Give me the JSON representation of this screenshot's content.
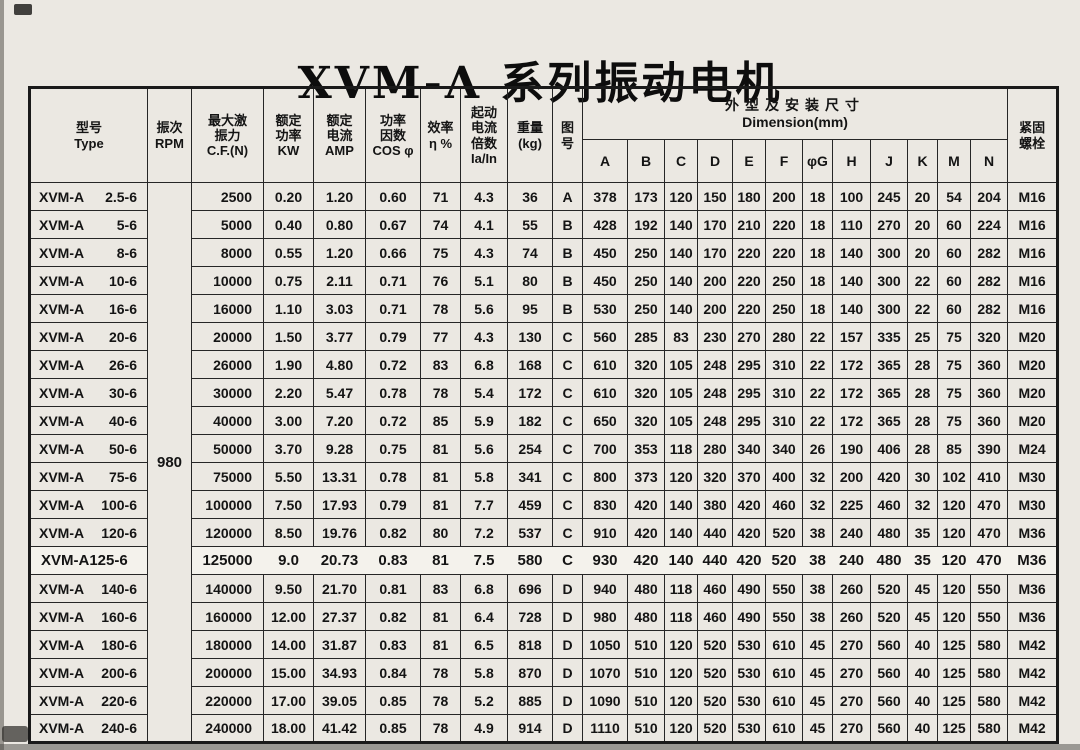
{
  "title": "XVM-A 系列振动电机",
  "colors": {
    "paper": "#ebe8e2",
    "ink": "#1a1a1a"
  },
  "table": {
    "left_headers": [
      "型号\nType",
      "振次\nRPM",
      "最大激\n振力\nC.F.(N)",
      "额定\n功率\nKW",
      "额定\n电流\nAMP",
      "功率\n因数\nCOS φ",
      "效率\nη %",
      "起动\n电流\n倍数\nIa/In",
      "重量\n(kg)",
      "图\n号"
    ],
    "dim_group": "外型及安装尺寸\nDimension(mm)",
    "dim_cols": [
      "A",
      "B",
      "C",
      "D",
      "E",
      "F",
      "φG",
      "H",
      "J",
      "K",
      "M",
      "N"
    ],
    "bolt_header": "紧固\n螺栓",
    "rpm_value": "980",
    "rows": [
      {
        "model": "XVM-A",
        "size": "2.5-6",
        "cf": "2500",
        "kw": "0.20",
        "amp": "1.20",
        "cos": "0.60",
        "eff": "71",
        "ia_in": "4.3",
        "weight": "36",
        "fig": "A",
        "dims": [
          "378",
          "173",
          "120",
          "150",
          "180",
          "200",
          "18",
          "100",
          "245",
          "20",
          "54",
          "204"
        ],
        "bolt": "M16"
      },
      {
        "model": "XVM-A",
        "size": "5-6",
        "cf": "5000",
        "kw": "0.40",
        "amp": "0.80",
        "cos": "0.67",
        "eff": "74",
        "ia_in": "4.1",
        "weight": "55",
        "fig": "B",
        "dims": [
          "428",
          "192",
          "140",
          "170",
          "210",
          "220",
          "18",
          "110",
          "270",
          "20",
          "60",
          "224"
        ],
        "bolt": "M16"
      },
      {
        "model": "XVM-A",
        "size": "8-6",
        "cf": "8000",
        "kw": "0.55",
        "amp": "1.20",
        "cos": "0.66",
        "eff": "75",
        "ia_in": "4.3",
        "weight": "74",
        "fig": "B",
        "dims": [
          "450",
          "250",
          "140",
          "170",
          "220",
          "220",
          "18",
          "140",
          "300",
          "20",
          "60",
          "282"
        ],
        "bolt": "M16"
      },
      {
        "model": "XVM-A",
        "size": "10-6",
        "cf": "10000",
        "kw": "0.75",
        "amp": "2.11",
        "cos": "0.71",
        "eff": "76",
        "ia_in": "5.1",
        "weight": "80",
        "fig": "B",
        "dims": [
          "450",
          "250",
          "140",
          "200",
          "220",
          "250",
          "18",
          "140",
          "300",
          "22",
          "60",
          "282"
        ],
        "bolt": "M16"
      },
      {
        "model": "XVM-A",
        "size": "16-6",
        "cf": "16000",
        "kw": "1.10",
        "amp": "3.03",
        "cos": "0.71",
        "eff": "78",
        "ia_in": "5.6",
        "weight": "95",
        "fig": "B",
        "dims": [
          "530",
          "250",
          "140",
          "200",
          "220",
          "250",
          "18",
          "140",
          "300",
          "22",
          "60",
          "282"
        ],
        "bolt": "M16"
      },
      {
        "model": "XVM-A",
        "size": "20-6",
        "cf": "20000",
        "kw": "1.50",
        "amp": "3.77",
        "cos": "0.79",
        "eff": "77",
        "ia_in": "4.3",
        "weight": "130",
        "fig": "C",
        "dims": [
          "560",
          "285",
          "83",
          "230",
          "270",
          "280",
          "22",
          "157",
          "335",
          "25",
          "75",
          "320"
        ],
        "bolt": "M20"
      },
      {
        "model": "XVM-A",
        "size": "26-6",
        "cf": "26000",
        "kw": "1.90",
        "amp": "4.80",
        "cos": "0.72",
        "eff": "83",
        "ia_in": "6.8",
        "weight": "168",
        "fig": "C",
        "dims": [
          "610",
          "320",
          "105",
          "248",
          "295",
          "310",
          "22",
          "172",
          "365",
          "28",
          "75",
          "360"
        ],
        "bolt": "M20"
      },
      {
        "model": "XVM-A",
        "size": "30-6",
        "cf": "30000",
        "kw": "2.20",
        "amp": "5.47",
        "cos": "0.78",
        "eff": "78",
        "ia_in": "5.4",
        "weight": "172",
        "fig": "C",
        "dims": [
          "610",
          "320",
          "105",
          "248",
          "295",
          "310",
          "22",
          "172",
          "365",
          "28",
          "75",
          "360"
        ],
        "bolt": "M20"
      },
      {
        "model": "XVM-A",
        "size": "40-6",
        "cf": "40000",
        "kw": "3.00",
        "amp": "7.20",
        "cos": "0.72",
        "eff": "85",
        "ia_in": "5.9",
        "weight": "182",
        "fig": "C",
        "dims": [
          "650",
          "320",
          "105",
          "248",
          "295",
          "310",
          "22",
          "172",
          "365",
          "28",
          "75",
          "360"
        ],
        "bolt": "M20"
      },
      {
        "model": "XVM-A",
        "size": "50-6",
        "cf": "50000",
        "kw": "3.70",
        "amp": "9.28",
        "cos": "0.75",
        "eff": "81",
        "ia_in": "5.6",
        "weight": "254",
        "fig": "C",
        "dims": [
          "700",
          "353",
          "118",
          "280",
          "340",
          "340",
          "26",
          "190",
          "406",
          "28",
          "85",
          "390"
        ],
        "bolt": "M24"
      },
      {
        "model": "XVM-A",
        "size": "75-6",
        "cf": "75000",
        "kw": "5.50",
        "amp": "13.31",
        "cos": "0.78",
        "eff": "81",
        "ia_in": "5.8",
        "weight": "341",
        "fig": "C",
        "dims": [
          "800",
          "373",
          "120",
          "320",
          "370",
          "400",
          "32",
          "200",
          "420",
          "30",
          "102",
          "410"
        ],
        "bolt": "M30"
      },
      {
        "model": "XVM-A",
        "size": "100-6",
        "cf": "100000",
        "kw": "7.50",
        "amp": "17.93",
        "cos": "0.79",
        "eff": "81",
        "ia_in": "7.7",
        "weight": "459",
        "fig": "C",
        "dims": [
          "830",
          "420",
          "140",
          "380",
          "420",
          "460",
          "32",
          "225",
          "460",
          "32",
          "120",
          "470"
        ],
        "bolt": "M30"
      },
      {
        "model": "XVM-A",
        "size": "120-6",
        "cf": "120000",
        "kw": "8.50",
        "amp": "19.76",
        "cos": "0.82",
        "eff": "80",
        "ia_in": "7.2",
        "weight": "537",
        "fig": "C",
        "dims": [
          "910",
          "420",
          "140",
          "440",
          "420",
          "520",
          "38",
          "240",
          "480",
          "35",
          "120",
          "470"
        ],
        "bolt": "M36"
      },
      {
        "model": "XVM-A125-6",
        "size": "",
        "pasted": true,
        "cf": "125000",
        "kw": "9.0",
        "amp": "20.73",
        "cos": "0.83",
        "eff": "81",
        "ia_in": "7.5",
        "weight": "580",
        "fig": "C",
        "dims": [
          "930",
          "420",
          "140",
          "440",
          "420",
          "520",
          "38",
          "240",
          "480",
          "35",
          "120",
          "470"
        ],
        "bolt": "M36"
      },
      {
        "model": "XVM-A",
        "size": "140-6",
        "cf": "140000",
        "kw": "9.50",
        "amp": "21.70",
        "cos": "0.81",
        "eff": "83",
        "ia_in": "6.8",
        "weight": "696",
        "fig": "D",
        "dims": [
          "940",
          "480",
          "118",
          "460",
          "490",
          "550",
          "38",
          "260",
          "520",
          "45",
          "120",
          "550"
        ],
        "bolt": "M36"
      },
      {
        "model": "XVM-A",
        "size": "160-6",
        "cf": "160000",
        "kw": "12.00",
        "amp": "27.37",
        "cos": "0.82",
        "eff": "81",
        "ia_in": "6.4",
        "weight": "728",
        "fig": "D",
        "dims": [
          "980",
          "480",
          "118",
          "460",
          "490",
          "550",
          "38",
          "260",
          "520",
          "45",
          "120",
          "550"
        ],
        "bolt": "M36"
      },
      {
        "model": "XVM-A",
        "size": "180-6",
        "cf": "180000",
        "kw": "14.00",
        "amp": "31.87",
        "cos": "0.83",
        "eff": "81",
        "ia_in": "6.5",
        "weight": "818",
        "fig": "D",
        "dims": [
          "1050",
          "510",
          "120",
          "520",
          "530",
          "610",
          "45",
          "270",
          "560",
          "40",
          "125",
          "580"
        ],
        "bolt": "M42"
      },
      {
        "model": "XVM-A",
        "size": "200-6",
        "cf": "200000",
        "kw": "15.00",
        "amp": "34.93",
        "cos": "0.84",
        "eff": "78",
        "ia_in": "5.8",
        "weight": "870",
        "fig": "D",
        "dims": [
          "1070",
          "510",
          "120",
          "520",
          "530",
          "610",
          "45",
          "270",
          "560",
          "40",
          "125",
          "580"
        ],
        "bolt": "M42"
      },
      {
        "model": "XVM-A",
        "size": "220-6",
        "cf": "220000",
        "kw": "17.00",
        "amp": "39.05",
        "cos": "0.85",
        "eff": "78",
        "ia_in": "5.2",
        "weight": "885",
        "fig": "D",
        "dims": [
          "1090",
          "510",
          "120",
          "520",
          "530",
          "610",
          "45",
          "270",
          "560",
          "40",
          "125",
          "580"
        ],
        "bolt": "M42"
      },
      {
        "model": "XVM-A",
        "size": "240-6",
        "cf": "240000",
        "kw": "18.00",
        "amp": "41.42",
        "cos": "0.85",
        "eff": "78",
        "ia_in": "4.9",
        "weight": "914",
        "fig": "D",
        "dims": [
          "1110",
          "510",
          "120",
          "520",
          "530",
          "610",
          "45",
          "270",
          "560",
          "40",
          "125",
          "580"
        ],
        "bolt": "M42"
      }
    ]
  }
}
